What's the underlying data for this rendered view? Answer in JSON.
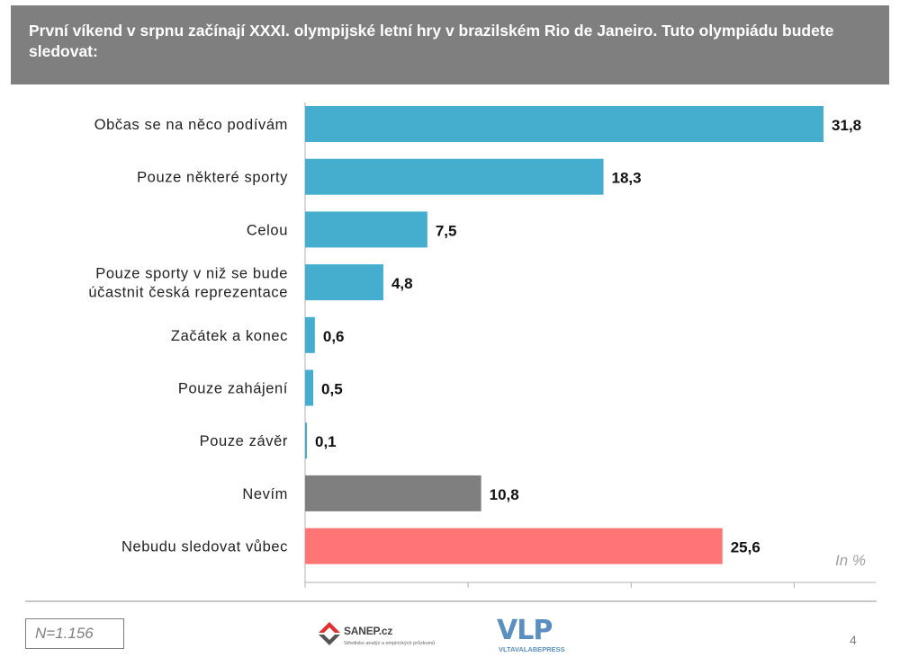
{
  "header": {
    "title": "První víkend v srpnu začínají XXXI. olympijské letní hry v brazilském Rio de Janeiro. Tuto olympiádu budete sledovat:"
  },
  "chart_data": {
    "type": "bar",
    "orientation": "horizontal",
    "unit": "In %",
    "xlim": [
      0,
      35
    ],
    "categories": [
      "Občas se na něco podívám",
      "Pouze některé sporty",
      "Celou",
      "Pouze sporty v niž se bude\núčastnit česká reprezentace",
      "Začátek a konec",
      "Pouze zahájení",
      "Pouze závěr",
      "Nevím",
      "Nebudu sledovat vůbec"
    ],
    "values": [
      31.8,
      18.3,
      7.5,
      4.8,
      0.6,
      0.5,
      0.1,
      10.8,
      25.6
    ],
    "value_labels": [
      "31,8",
      "18,3",
      "7,5",
      "4,8",
      "0,6",
      "0,5",
      "0,1",
      "10,8",
      "25,6"
    ],
    "bar_colors": [
      "#45aecf",
      "#45aecf",
      "#45aecf",
      "#45aecf",
      "#45aecf",
      "#45aecf",
      "#45aecf",
      "#7f7f7f",
      "#ff7575"
    ]
  },
  "footer": {
    "sample": "N=1.156",
    "sanep_logo": "SANEP.cz",
    "sanep_tagline": "Středisko analýz a empirických průzkumů",
    "vlp_logo": "VLP",
    "vlp_tagline": "VLTAVALABEPRESS",
    "page_number": "4"
  }
}
